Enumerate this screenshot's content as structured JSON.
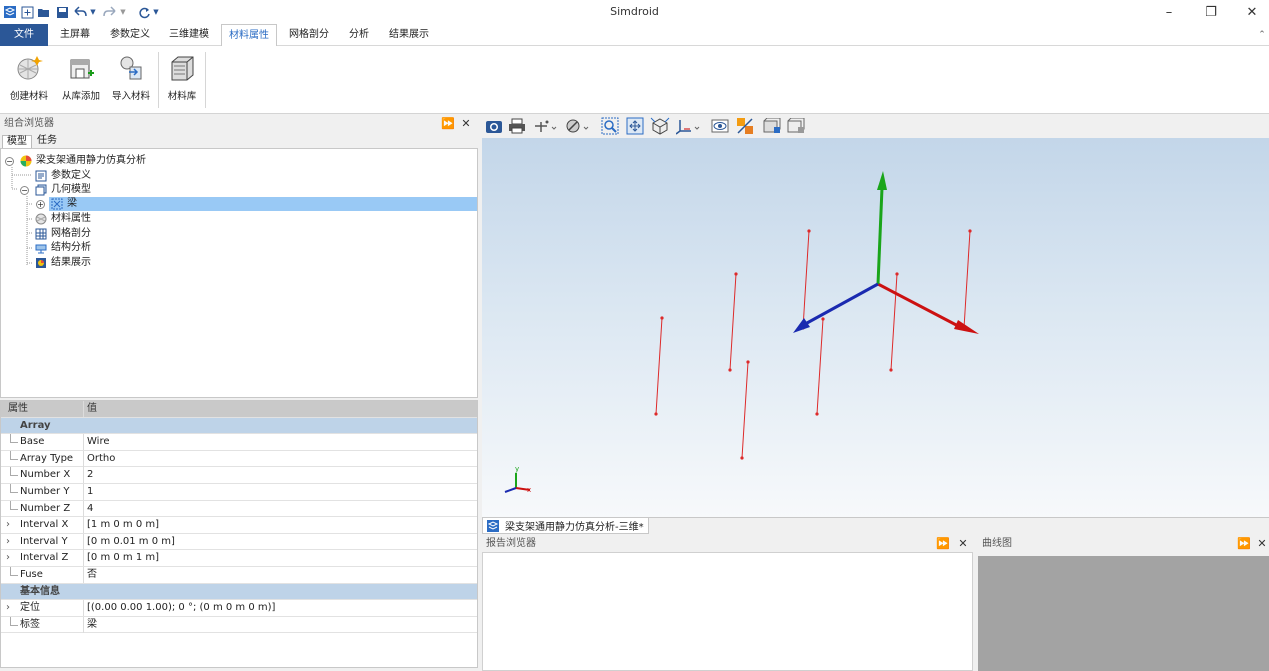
{
  "window": {
    "title": "Simdroid",
    "controls": {
      "minimize": "–",
      "restore": "❐",
      "close": "✕"
    }
  },
  "quick_access": [
    "app-icon",
    "new-icon",
    "open-icon",
    "save-icon",
    "undo-icon",
    "redo-icon",
    "refresh-icon"
  ],
  "menu": {
    "file": "文件",
    "tabs": [
      "主屏幕",
      "参数定义",
      "三维建模",
      "材料属性",
      "网格剖分",
      "分析",
      "结果展示"
    ],
    "active": "材料属性"
  },
  "ribbon": {
    "buttons": [
      {
        "label": "创建材料",
        "icon": "create-material-icon"
      },
      {
        "label": "从库添加",
        "icon": "add-from-library-icon"
      },
      {
        "label": "导入材料",
        "icon": "import-material-icon"
      },
      {
        "label": "材料库",
        "icon": "material-library-icon"
      }
    ]
  },
  "browser": {
    "title": "组合浏览器",
    "tabs": [
      "模型",
      "任务"
    ],
    "tree": [
      {
        "label": "梁支架通用静力仿真分析",
        "icon": "project-icon"
      },
      {
        "label": "参数定义",
        "icon": "parameter-icon"
      },
      {
        "label": "几何模型",
        "icon": "geometry-icon"
      },
      {
        "label": "梁",
        "icon": "beam-array-icon",
        "selected": true
      },
      {
        "label": "材料属性",
        "icon": "material-icon"
      },
      {
        "label": "网格剖分",
        "icon": "mesh-icon"
      },
      {
        "label": "结构分析",
        "icon": "structure-analysis-icon"
      },
      {
        "label": "结果展示",
        "icon": "result-icon"
      }
    ]
  },
  "properties": {
    "col_property": "属性",
    "col_value": "值",
    "rows": [
      {
        "type": "group",
        "key": "Array"
      },
      {
        "key": "Base",
        "value": "Wire"
      },
      {
        "key": "Array Type",
        "value": "Ortho"
      },
      {
        "key": "Number X",
        "value": "2"
      },
      {
        "key": "Number Y",
        "value": "1"
      },
      {
        "key": "Number Z",
        "value": "4"
      },
      {
        "key": "Interval X",
        "value": "[1 m  0 m  0 m]",
        "expandable": true
      },
      {
        "key": "Interval Y",
        "value": "[0 m  0.01 m  0 m]",
        "expandable": true
      },
      {
        "key": "Interval Z",
        "value": "[0 m  0 m  1 m]",
        "expandable": true
      },
      {
        "key": "Fuse",
        "value": "否"
      },
      {
        "type": "group",
        "key": "基本信息"
      },
      {
        "key": "定位",
        "value": "[(0.00 0.00 1.00); 0 °; (0 m  0 m  0 m)]",
        "expandable": true
      },
      {
        "key": "标签",
        "value": "梁"
      }
    ]
  },
  "viewport": {
    "tab_label": "梁支架通用静力仿真分析-三维*",
    "axis_colors": {
      "x": "#cc1111",
      "y": "#1aa51a",
      "z": "#1a2ab0"
    },
    "triad_labels": {
      "x": "x",
      "y": "y"
    },
    "toolbar_icons": [
      "screenshot-icon",
      "print-icon",
      "measure-icon",
      "section-icon",
      "zoom-box-icon",
      "fit-all-icon",
      "view-cube-icon",
      "axis-view-icon",
      "visibility-icon",
      "color-icon",
      "highlight-icon",
      "display-mode-icon"
    ]
  },
  "report": {
    "title": "报告浏览器"
  },
  "curve": {
    "title": "曲线图"
  }
}
